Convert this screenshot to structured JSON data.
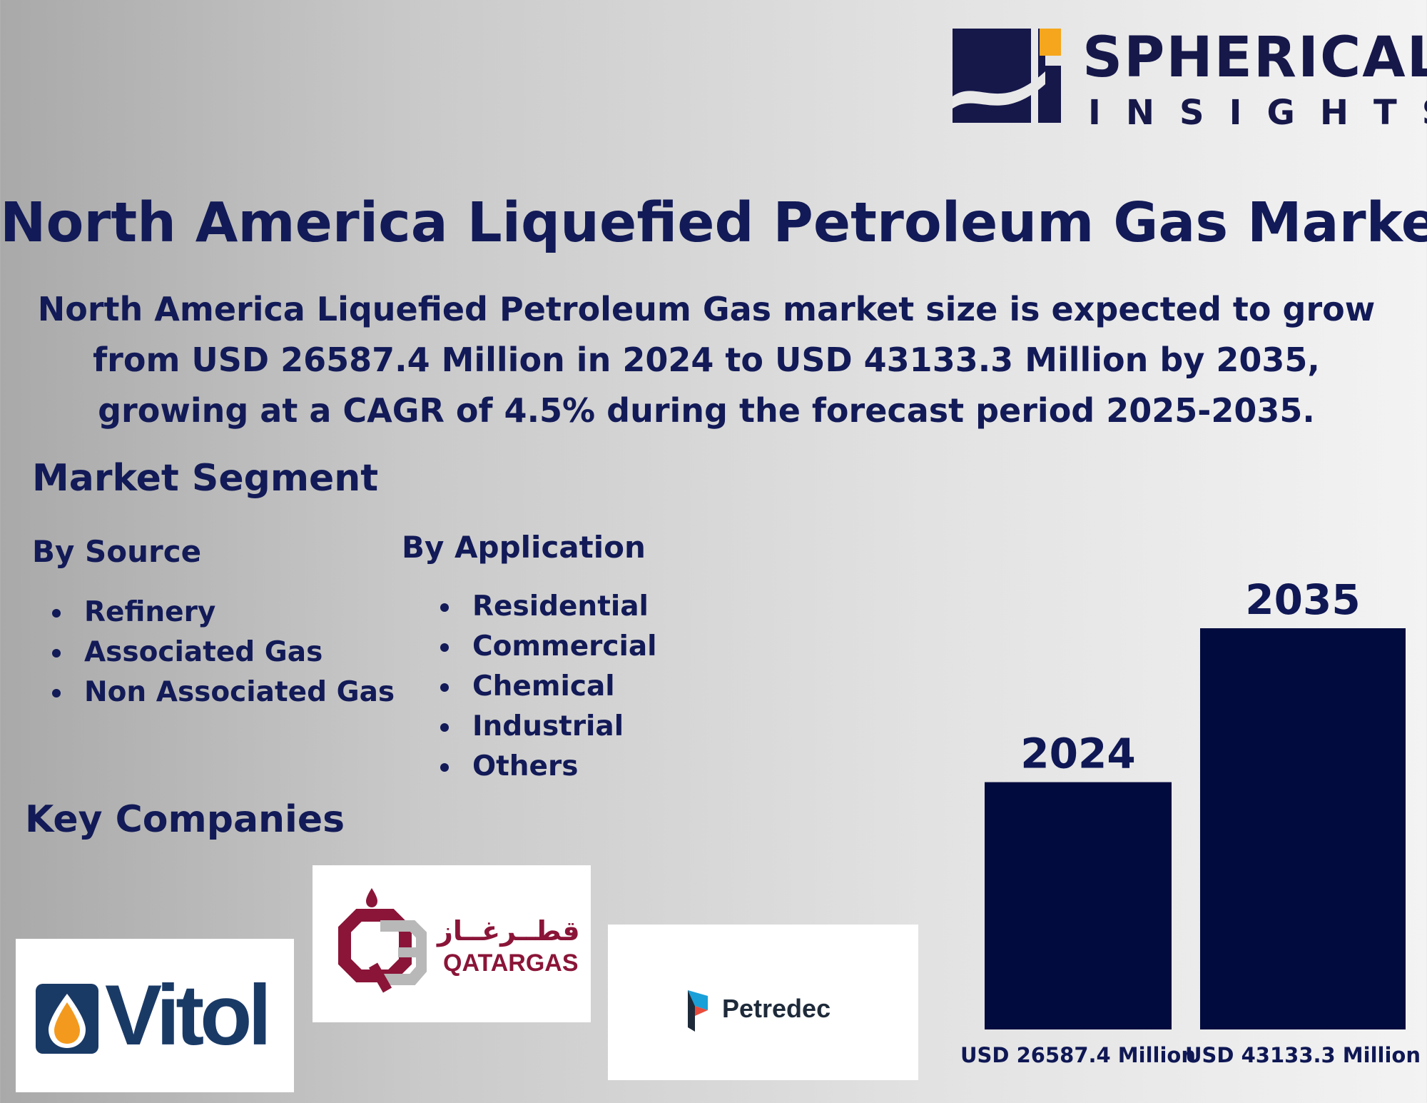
{
  "brand": {
    "name": "SPHERICAL",
    "tagline": "INSIGHTS",
    "colors": {
      "navy": "#16184a",
      "accent": "#f5a61c"
    },
    "icon": "spherical-insights-logo"
  },
  "title": "North America Liquefied Petroleum Gas Market",
  "summary": "North America Liquefied Petroleum Gas market size is expected to grow from USD 26587.4 Million in 2024 to USD 43133.3 Million by 2035, growing at a CAGR of 4.5% during the forecast period 2025-2035.",
  "market_segment": {
    "heading": "Market Segment",
    "by_source": {
      "heading": "By Source",
      "items": [
        "Refinery",
        "Associated Gas",
        "Non Associated Gas"
      ]
    },
    "by_application": {
      "heading": "By Application",
      "items": [
        "Residential",
        "Commercial",
        "Chemical",
        "Industrial",
        "Others"
      ]
    }
  },
  "key_companies": {
    "heading": "Key Companies",
    "companies": [
      {
        "name": "Vitol",
        "icon": "vitol-drop-logo",
        "colors": {
          "text": "#1a3a66",
          "drop": "#f39a1e"
        }
      },
      {
        "name": "QATARGAS",
        "arabic": "قطــرغــاز",
        "icon": "qatargas-qg-logo",
        "colors": {
          "primary": "#8a1538",
          "secondary": "#b8b8b8"
        }
      },
      {
        "name": "Petredec",
        "icon": "petredec-logo",
        "colors": {
          "text": "#1e2a3a",
          "accent": "#1aa0d8"
        }
      }
    ]
  },
  "chart_data": {
    "type": "bar",
    "categories": [
      "2024",
      "2035"
    ],
    "values": [
      26587.4,
      43133.3
    ],
    "value_labels": [
      "USD 26587.4 Million",
      "USD 43133.3 Million"
    ],
    "bar_color": "#020b3e"
  }
}
